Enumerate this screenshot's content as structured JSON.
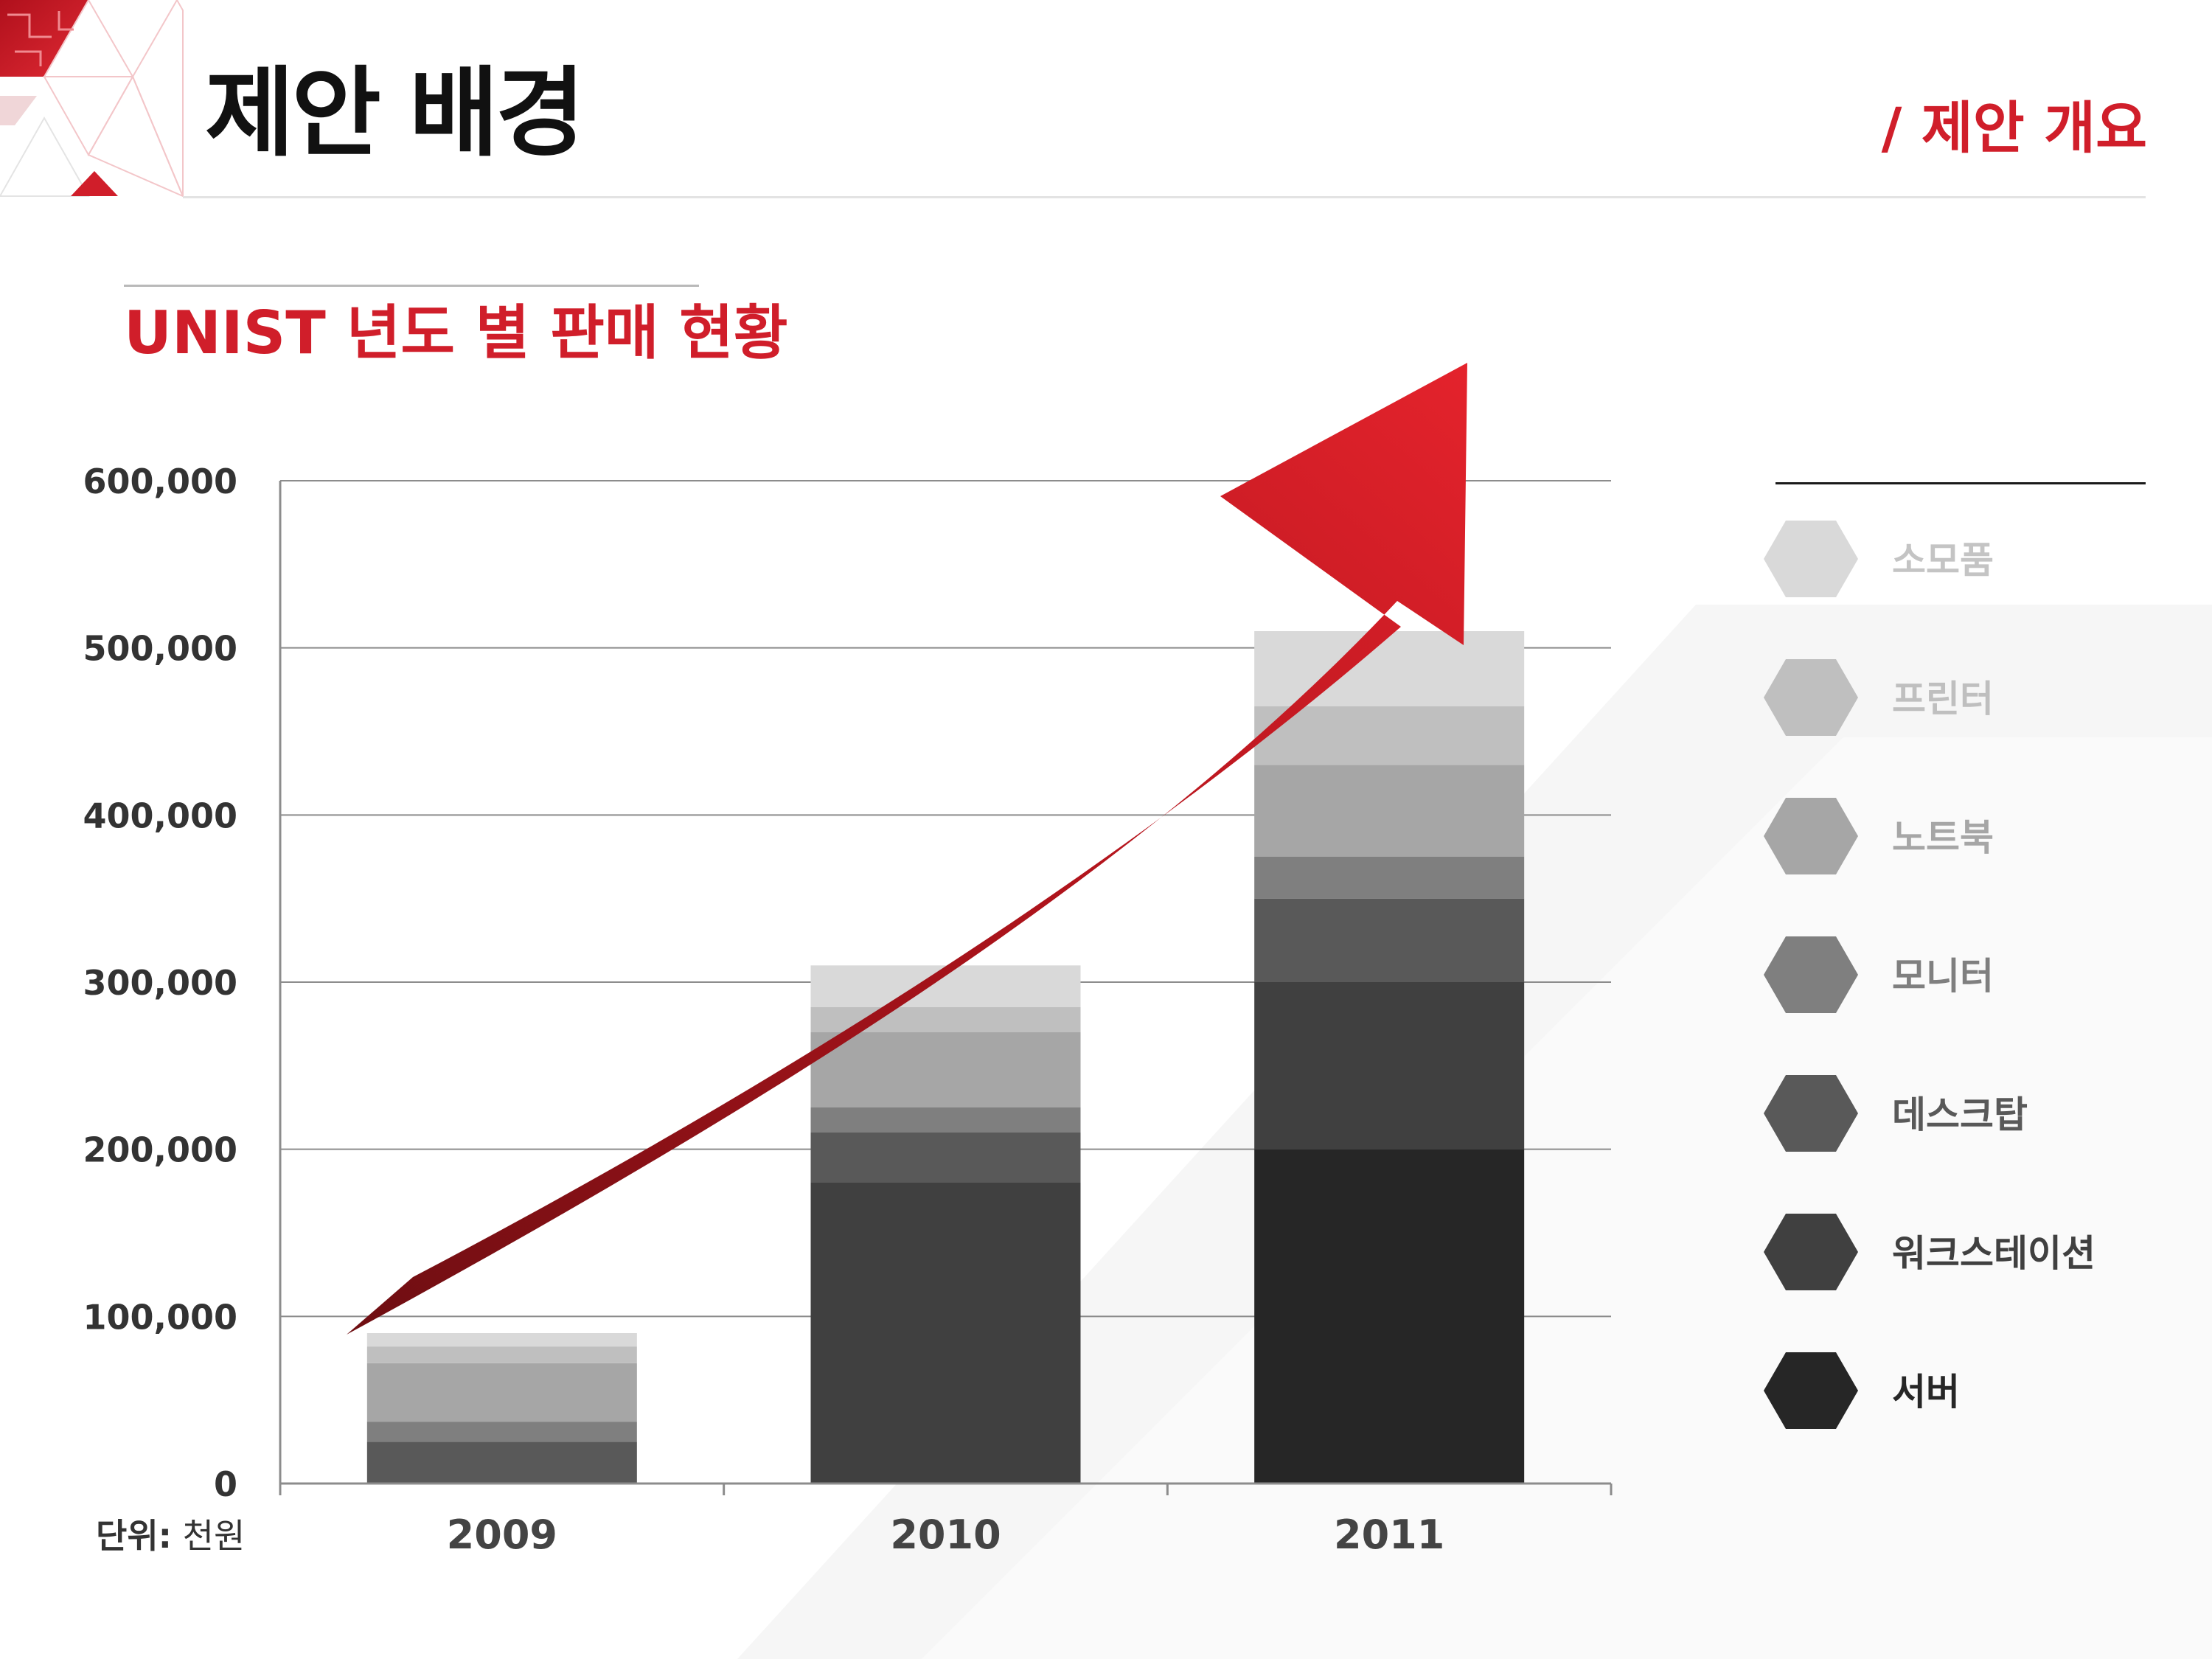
{
  "header": {
    "title": "제안 배경",
    "section": "/ 제안 개요"
  },
  "chart_data": {
    "type": "bar",
    "stacked": true,
    "title": "UNIST 년도 별 판매 현황",
    "categories": [
      "2009",
      "2010",
      "2011"
    ],
    "series": [
      {
        "name": "서버",
        "color": "#262626",
        "values": [
          0,
          0,
          200000
        ]
      },
      {
        "name": "워크스테이션",
        "color": "#404040",
        "values": [
          0,
          180000,
          100000
        ]
      },
      {
        "name": "데스크탑",
        "color": "#595959",
        "values": [
          25000,
          30000,
          50000
        ]
      },
      {
        "name": "모니터",
        "color": "#7f7f7f",
        "values": [
          12000,
          15000,
          25000
        ]
      },
      {
        "name": "노트북",
        "color": "#a6a6a6",
        "values": [
          35000,
          45000,
          55000
        ]
      },
      {
        "name": "프린터",
        "color": "#bfbfbf",
        "values": [
          10000,
          15000,
          35000
        ]
      },
      {
        "name": "소모품",
        "color": "#d9d9d9",
        "values": [
          8000,
          25000,
          45000
        ]
      }
    ],
    "ylim": [
      0,
      600000
    ],
    "yticks": [
      "0",
      "100,000",
      "200,000",
      "300,000",
      "400,000",
      "500,000",
      "600,000"
    ],
    "ytick_values": [
      0,
      100000,
      200000,
      300000,
      400000,
      500000,
      600000
    ],
    "grid": true,
    "legend_placement": "right",
    "unit_label": "단위:",
    "unit_value": "천원",
    "accent": "#d01e2a"
  }
}
